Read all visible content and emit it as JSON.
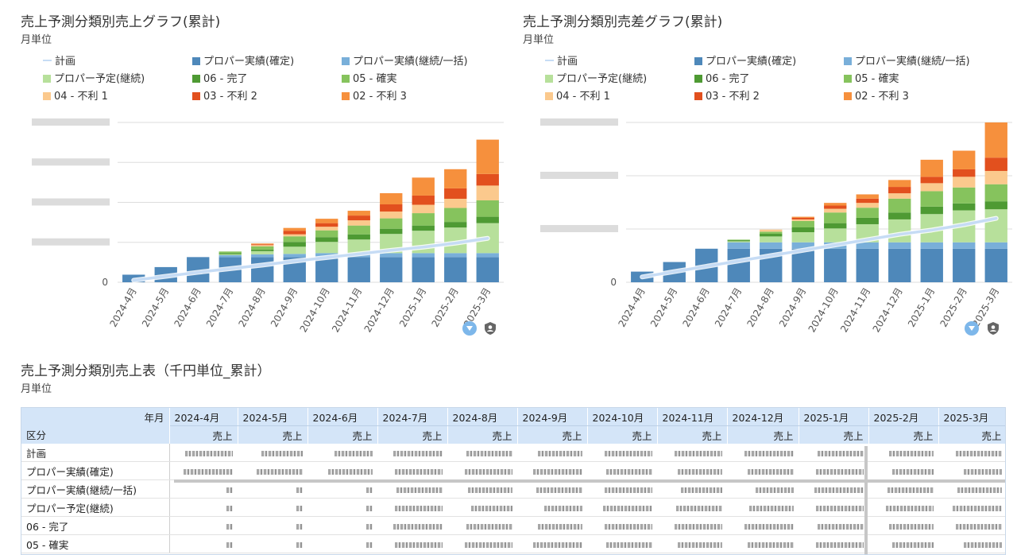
{
  "colors": {
    "plan": "#c6dcf5",
    "proper_actual_fixed": "#4e88ba",
    "proper_actual_continuing": "#79afd9",
    "proper_plan_continuing": "#b7e09b",
    "done06": "#4e9a33",
    "sure05": "#86c35d",
    "disadv04": "#fbc98d",
    "disadv03": "#e2501e",
    "disadv02": "#f6903d",
    "grid": "#dddddd",
    "axis_text": "#555555"
  },
  "legend": [
    {
      "key": "plan",
      "label": "計画",
      "kind": "line"
    },
    {
      "key": "proper_actual_fixed",
      "label": "プロパー実績(確定)",
      "kind": "box"
    },
    {
      "key": "proper_actual_continuing",
      "label": "プロパー実績(継続/一括)",
      "kind": "box"
    },
    {
      "key": "proper_plan_continuing",
      "label": "プロパー予定(継続)",
      "kind": "box"
    },
    {
      "key": "done06",
      "label": "06 - 完了",
      "kind": "box"
    },
    {
      "key": "sure05",
      "label": "05 - 確実",
      "kind": "box"
    },
    {
      "key": "disadv04",
      "label": "04 - 不利 1",
      "kind": "box"
    },
    {
      "key": "disadv03",
      "label": "03 - 不利 2",
      "kind": "box"
    },
    {
      "key": "disadv02",
      "label": "02 - 不利 3",
      "kind": "box"
    }
  ],
  "chart_data": [
    {
      "type": "bar",
      "stacked": true,
      "title": "売上予測分類別売上グラフ(累計)",
      "subtitle": "月単位",
      "categories": [
        "2024-4月",
        "2024-5月",
        "2024-6月",
        "2024-7月",
        "2024-8月",
        "2024-9月",
        "2024-10月",
        "2024-11月",
        "2024-12月",
        "2025-1月",
        "2025-2月",
        "2025-3月"
      ],
      "ylim": [
        0,
        4
      ],
      "yticks": [
        0,
        1,
        2,
        3,
        4
      ],
      "ytick_labels": [
        "0",
        "",
        "",
        "",
        ""
      ],
      "grid": true,
      "legend_position": "top",
      "series": [
        {
          "key": "proper_actual_fixed",
          "values": [
            0.19,
            0.38,
            0.63,
            0.63,
            0.63,
            0.63,
            0.63,
            0.63,
            0.63,
            0.63,
            0.63,
            0.63
          ]
        },
        {
          "key": "proper_actual_continuing",
          "values": [
            0,
            0,
            0,
            0.05,
            0.07,
            0.08,
            0.1,
            0.1,
            0.1,
            0.1,
            0.1,
            0.1
          ]
        },
        {
          "key": "proper_plan_continuing",
          "values": [
            0,
            0,
            0,
            0.02,
            0.08,
            0.18,
            0.28,
            0.34,
            0.48,
            0.56,
            0.64,
            0.75
          ]
        },
        {
          "key": "done06",
          "values": [
            0,
            0,
            0,
            0.03,
            0.04,
            0.12,
            0.12,
            0.13,
            0.13,
            0.13,
            0.14,
            0.16
          ]
        },
        {
          "key": "sure05",
          "values": [
            0,
            0,
            0,
            0.04,
            0.08,
            0.14,
            0.17,
            0.22,
            0.26,
            0.31,
            0.35,
            0.41
          ]
        },
        {
          "key": "disadv04",
          "values": [
            0,
            0,
            0,
            0,
            0.03,
            0.05,
            0.09,
            0.13,
            0.17,
            0.21,
            0.23,
            0.37
          ]
        },
        {
          "key": "disadv03",
          "values": [
            0,
            0,
            0,
            0,
            0.02,
            0.09,
            0.09,
            0.12,
            0.18,
            0.23,
            0.26,
            0.29
          ]
        },
        {
          "key": "disadv02",
          "values": [
            0,
            0,
            0,
            0,
            0.02,
            0.07,
            0.11,
            0.12,
            0.28,
            0.45,
            0.48,
            0.86
          ]
        }
      ],
      "line": {
        "key": "plan",
        "values": [
          0.05,
          0.15,
          0.25,
          0.34,
          0.43,
          0.53,
          0.62,
          0.71,
          0.8,
          0.88,
          0.98,
          1.1
        ]
      }
    },
    {
      "type": "bar",
      "stacked": true,
      "title": "売上予測分類別売差グラフ(累計)",
      "subtitle": "月単位",
      "categories": [
        "2024-4月",
        "2024-5月",
        "2024-6月",
        "2024-7月",
        "2024-8月",
        "2024-9月",
        "2024-10月",
        "2024-11月",
        "2024-12月",
        "2025-1月",
        "2025-2月",
        "2025-3月"
      ],
      "ylim": [
        0,
        3
      ],
      "yticks": [
        0,
        1,
        2,
        3
      ],
      "ytick_labels": [
        "0",
        "",
        "",
        ""
      ],
      "grid": true,
      "legend_position": "top",
      "series": [
        {
          "key": "proper_actual_fixed",
          "values": [
            0.2,
            0.38,
            0.63,
            0.63,
            0.63,
            0.63,
            0.63,
            0.63,
            0.63,
            0.63,
            0.63,
            0.63
          ]
        },
        {
          "key": "proper_actual_continuing",
          "values": [
            0,
            0,
            0,
            0.12,
            0.12,
            0.12,
            0.12,
            0.12,
            0.12,
            0.12,
            0.12,
            0.12
          ]
        },
        {
          "key": "proper_plan_continuing",
          "values": [
            0,
            0,
            0,
            0.02,
            0.11,
            0.19,
            0.26,
            0.34,
            0.43,
            0.53,
            0.6,
            0.62
          ]
        },
        {
          "key": "done06",
          "values": [
            0,
            0,
            0,
            0.02,
            0.05,
            0.09,
            0.1,
            0.12,
            0.13,
            0.14,
            0.13,
            0.15
          ]
        },
        {
          "key": "sure05",
          "values": [
            0,
            0,
            0,
            0.01,
            0.04,
            0.12,
            0.2,
            0.19,
            0.26,
            0.29,
            0.3,
            0.32
          ]
        },
        {
          "key": "disadv04",
          "values": [
            0,
            0,
            0,
            0,
            0.04,
            0.03,
            0.07,
            0.09,
            0.1,
            0.15,
            0.2,
            0.25
          ]
        },
        {
          "key": "disadv03",
          "values": [
            0,
            0,
            0,
            0,
            0,
            0.03,
            0.06,
            0.08,
            0.12,
            0.12,
            0.14,
            0.25
          ]
        },
        {
          "key": "disadv02",
          "values": [
            0,
            0,
            0,
            0,
            0,
            0.02,
            0.05,
            0.08,
            0.13,
            0.32,
            0.35,
            0.66
          ]
        }
      ],
      "line": {
        "key": "plan",
        "values": [
          0.1,
          0.2,
          0.3,
          0.4,
          0.5,
          0.6,
          0.7,
          0.8,
          0.9,
          0.98,
          1.08,
          1.2
        ]
      }
    }
  ],
  "table": {
    "title": "売上予測分類別売上表（千円単位_累計）",
    "subtitle": "月単位",
    "header_year_month": "年月",
    "header_category": "区分",
    "months": [
      "2024-4月",
      "2024-5月",
      "2024-6月",
      "2024-7月",
      "2024-8月",
      "2024-9月",
      "2024-10月",
      "2024-11月",
      "2024-12月",
      "2025-1月",
      "2025-2月",
      "2025-3月"
    ],
    "sales_label": "売上",
    "rows": [
      "計画",
      "プロパー実績(確定)",
      "プロパー実績(継続/一括)",
      "プロパー予定(継続)",
      "06 - 完了",
      "05 - 確実"
    ]
  }
}
